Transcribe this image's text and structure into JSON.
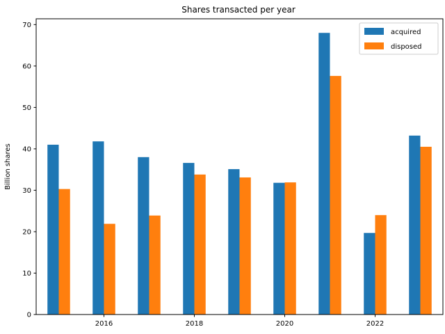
{
  "chart_data": {
    "type": "bar",
    "title": "Shares transacted per year",
    "xlabel": "",
    "ylabel": "Billion shares",
    "categories": [
      2015,
      2016,
      2017,
      2018,
      2019,
      2020,
      2021,
      2022,
      2023
    ],
    "x_ticks": [
      2016,
      2018,
      2020,
      2022
    ],
    "ylim": [
      0,
      71.4
    ],
    "y_ticks": [
      0,
      10,
      20,
      30,
      40,
      50,
      60,
      70
    ],
    "legend_position": "top-right",
    "grid": false,
    "series": [
      {
        "name": "acquired",
        "color": "#1f77b4",
        "values": [
          41.0,
          41.8,
          38.0,
          36.6,
          35.1,
          31.8,
          68.0,
          19.7,
          43.2
        ]
      },
      {
        "name": "disposed",
        "color": "#ff7f0e",
        "values": [
          30.3,
          21.9,
          23.9,
          33.8,
          33.1,
          31.9,
          57.6,
          24.0,
          40.5
        ]
      }
    ]
  }
}
